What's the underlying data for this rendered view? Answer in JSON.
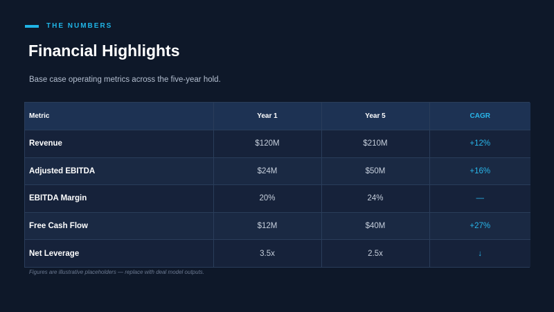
{
  "kicker": "THE NUMBERS",
  "title": "Financial Highlights",
  "subtitle": "Base case operating metrics across the five-year hold.",
  "table": {
    "headers": [
      "Metric",
      "Year 1",
      "Year 5",
      "CAGR"
    ],
    "rows": [
      {
        "metric": "Revenue",
        "year1": "$120M",
        "year5": "$210M",
        "cagr": "+12%"
      },
      {
        "metric": "Adjusted EBITDA",
        "year1": "$24M",
        "year5": "$50M",
        "cagr": "+16%"
      },
      {
        "metric": "EBITDA Margin",
        "year1": "20%",
        "year5": "24%",
        "cagr": "—"
      },
      {
        "metric": "Free Cash Flow",
        "year1": "$12M",
        "year5": "$40M",
        "cagr": "+27%"
      },
      {
        "metric": "Net Leverage",
        "year1": "3.5x",
        "year5": "2.5x",
        "cagr": "↓"
      }
    ]
  },
  "footnote": "Figures are illustrative placeholders — replace with deal model outputs.",
  "colors": {
    "background": "#0e1829",
    "accent": "#1fb4e6",
    "header_row": "#1d3253"
  }
}
